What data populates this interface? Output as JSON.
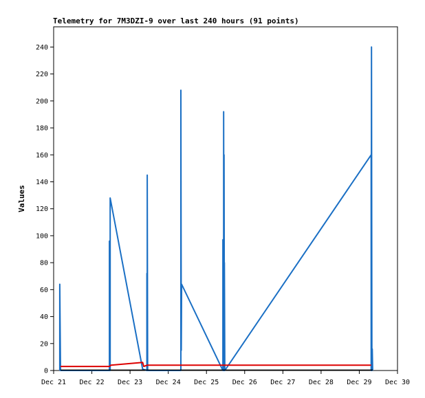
{
  "chart_data": {
    "type": "line",
    "title": "Telemetry for 7M3DZI-9 over last 240 hours (91 points)",
    "ylabel": "Values",
    "xlabel": "",
    "ylim": [
      0,
      255
    ],
    "xlim": [
      "Dec 21",
      "Dec 30"
    ],
    "yticks": [
      0,
      20,
      40,
      60,
      80,
      100,
      120,
      140,
      160,
      180,
      200,
      220,
      240
    ],
    "xticks": [
      "Dec 21",
      "Dec 22",
      "Dec 23",
      "Dec 24",
      "Dec 25",
      "Dec 26",
      "Dec 27",
      "Dec 28",
      "Dec 29",
      "Dec 30"
    ],
    "grid": false,
    "series": [
      {
        "color": "#1a6fc4",
        "points": [
          [
            0.16,
            0
          ],
          [
            0.16,
            64
          ],
          [
            0.18,
            0
          ],
          [
            0.18,
            0
          ],
          [
            1.46,
            0
          ],
          [
            1.46,
            96
          ],
          [
            1.47,
            0
          ],
          [
            1.47,
            66
          ],
          [
            1.48,
            0
          ],
          [
            1.48,
            128
          ],
          [
            2.33,
            1
          ],
          [
            2.44,
            0
          ],
          [
            2.44,
            72
          ],
          [
            2.45,
            0
          ],
          [
            2.45,
            145
          ],
          [
            2.46,
            0
          ],
          [
            3.33,
            0
          ],
          [
            3.33,
            208
          ],
          [
            3.34,
            15
          ],
          [
            3.35,
            64
          ],
          [
            4.43,
            0
          ],
          [
            4.43,
            97
          ],
          [
            4.45,
            0
          ],
          [
            4.45,
            192
          ],
          [
            4.46,
            0
          ],
          [
            4.46,
            160
          ],
          [
            4.47,
            0
          ],
          [
            4.47,
            80
          ],
          [
            4.48,
            0
          ],
          [
            8.31,
            160
          ],
          [
            8.31,
            0
          ],
          [
            8.32,
            240
          ],
          [
            8.33,
            0
          ],
          [
            8.34,
            16
          ],
          [
            8.35,
            0
          ]
        ]
      },
      {
        "color": "#dd0000",
        "points": [
          [
            0.18,
            3
          ],
          [
            1.46,
            3
          ],
          [
            1.5,
            4
          ],
          [
            2.33,
            6
          ],
          [
            2.36,
            3
          ],
          [
            2.45,
            4
          ],
          [
            8.31,
            4
          ]
        ]
      },
      {
        "color": "#000000",
        "points": [
          [
            0.18,
            0.3
          ],
          [
            8.35,
            0.3
          ]
        ]
      }
    ]
  }
}
